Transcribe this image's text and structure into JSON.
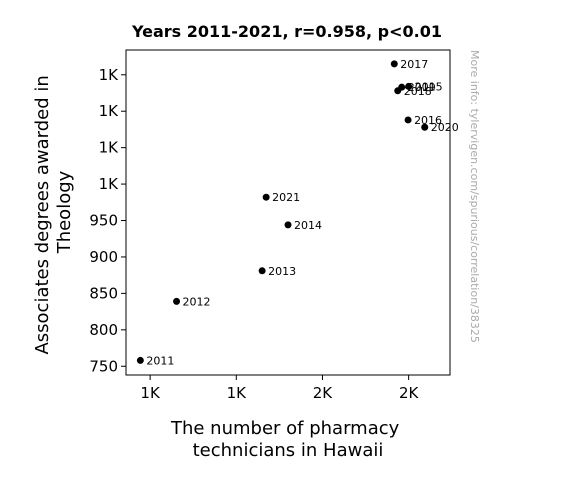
{
  "chart_data": {
    "type": "scatter",
    "title": "Years 2011-2021, r=0.958, p<0.01",
    "xlabel": [
      "The number of pharmacy",
      "technicians in Hawaii"
    ],
    "ylabel": [
      "Associates degrees awarded in",
      "Theology"
    ],
    "watermark": "More info: tylervigen.com/spurious/correlation/38325",
    "xlim": [
      1208,
      1772
    ],
    "ylim": [
      738,
      1184
    ],
    "xticks": [
      {
        "value": 1250,
        "label": "1K"
      },
      {
        "value": 1400,
        "label": "1K"
      },
      {
        "value": 1550,
        "label": "2K"
      },
      {
        "value": 1700,
        "label": "2K"
      }
    ],
    "yticks": [
      {
        "value": 750,
        "label": "750"
      },
      {
        "value": 800,
        "label": "800"
      },
      {
        "value": 850,
        "label": "850"
      },
      {
        "value": 900,
        "label": "900"
      },
      {
        "value": 950,
        "label": "950"
      },
      {
        "value": 1000,
        "label": "1K"
      },
      {
        "value": 1050,
        "label": "1K"
      },
      {
        "value": 1100,
        "label": "1K"
      },
      {
        "value": 1150,
        "label": "1K"
      }
    ],
    "points": [
      {
        "x": 1233,
        "y": 758,
        "label": "2011"
      },
      {
        "x": 1296,
        "y": 839,
        "label": "2012"
      },
      {
        "x": 1445,
        "y": 881,
        "label": "2013"
      },
      {
        "x": 1490,
        "y": 944,
        "label": "2014"
      },
      {
        "x": 1700,
        "y": 1134,
        "label": "2015"
      },
      {
        "x": 1699,
        "y": 1088,
        "label": "2016"
      },
      {
        "x": 1675,
        "y": 1165,
        "label": "2017"
      },
      {
        "x": 1681,
        "y": 1128,
        "label": "2018"
      },
      {
        "x": 1688,
        "y": 1133,
        "label": "2019"
      },
      {
        "x": 1728,
        "y": 1078,
        "label": "2020"
      },
      {
        "x": 1452,
        "y": 982,
        "label": "2021"
      }
    ],
    "marker_color": "#000000",
    "grid": false,
    "legend": "none"
  }
}
